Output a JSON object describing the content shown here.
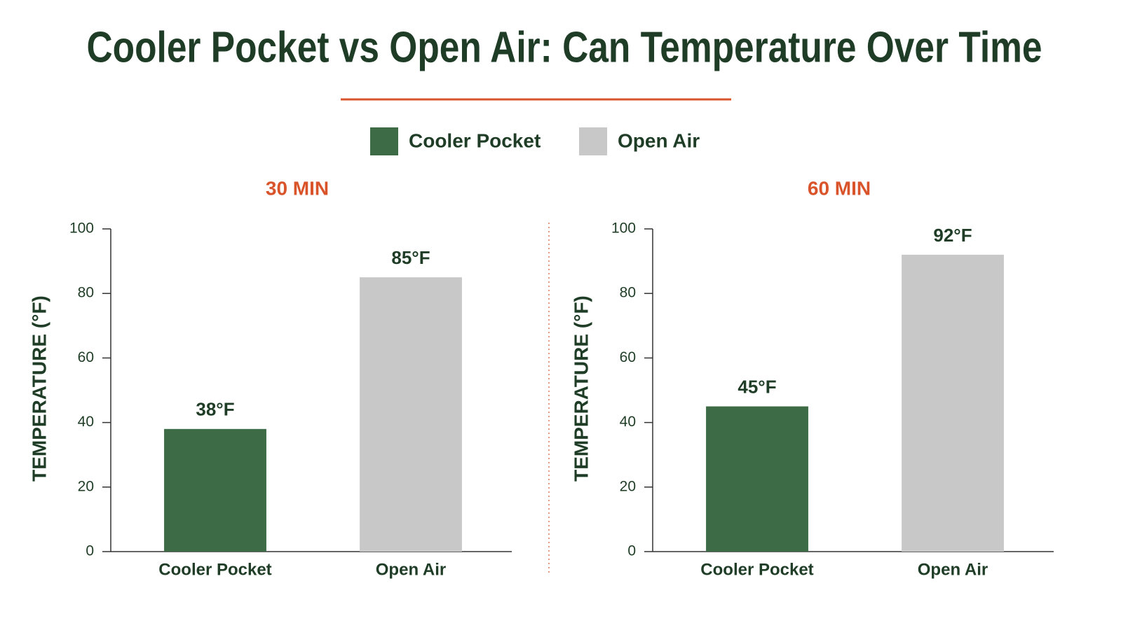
{
  "title": "Cooler Pocket vs Open Air: Can Temperature Over Time",
  "legend": [
    {
      "name": "Cooler Pocket",
      "color": "#3d6b45"
    },
    {
      "name": "Open Air",
      "color": "#c8c8c8"
    }
  ],
  "chart_data": [
    {
      "type": "bar",
      "title": "30 MIN",
      "y_label": "TEMPERATURE (°F)",
      "categories": [
        "Cooler Pocket",
        "Open Air"
      ],
      "values": [
        38,
        85
      ],
      "value_labels": [
        "38°F",
        "85°F"
      ],
      "colors": [
        "#3d6b45",
        "#c8c8c8"
      ],
      "ylim": [
        0,
        100
      ],
      "yticks": [
        0,
        20,
        40,
        60,
        80,
        100
      ]
    },
    {
      "type": "bar",
      "title": "60 MIN",
      "y_label": "TEMPERATURE (°F)",
      "categories": [
        "Cooler Pocket",
        "Open Air"
      ],
      "values": [
        45,
        92
      ],
      "value_labels": [
        "45°F",
        "92°F"
      ],
      "colors": [
        "#3d6b45",
        "#c8c8c8"
      ],
      "ylim": [
        0,
        100
      ],
      "yticks": [
        0,
        20,
        40,
        60,
        80,
        100
      ]
    }
  ]
}
